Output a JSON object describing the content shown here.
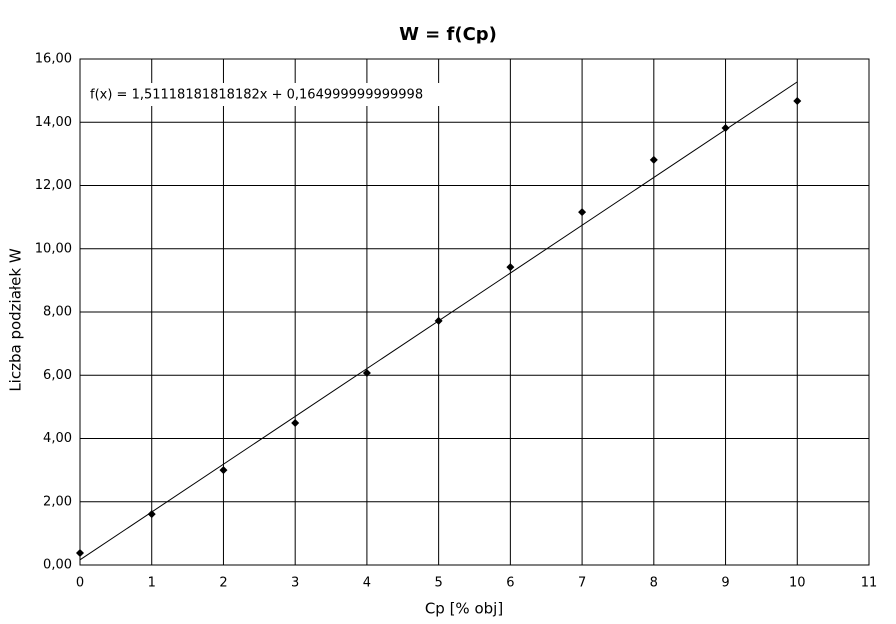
{
  "chart_data": {
    "type": "scatter",
    "title": "W = f(Cp)",
    "x_label": "Cp [% obj]",
    "y_label": "Liczba podziałek W",
    "x": [
      0,
      1,
      2,
      3,
      4,
      5,
      6,
      7,
      8,
      9,
      10
    ],
    "values": [
      0.38,
      1.61,
      3.0,
      4.49,
      6.07,
      7.72,
      9.42,
      11.16,
      12.81,
      13.82,
      14.67
    ],
    "color": "#000000",
    "trendline": {
      "slope": 1.51118181818182,
      "intercept": 0.164999999999998,
      "label": "f(x) = 1,51118181818182x + 0,164999999999998"
    },
    "xlim": [
      0,
      11
    ],
    "xticks": [
      0,
      1,
      2,
      3,
      4,
      5,
      6,
      7,
      8,
      9,
      10,
      11
    ],
    "ylim": [
      0,
      16
    ],
    "yticks": [
      {
        "value": 0,
        "label": "0,00"
      },
      {
        "value": 2,
        "label": "2,00"
      },
      {
        "value": 4,
        "label": "4,00"
      },
      {
        "value": 6,
        "label": "6,00"
      },
      {
        "value": 8,
        "label": "8,00"
      },
      {
        "value": 10,
        "label": "10,00"
      },
      {
        "value": 12,
        "label": "12,00"
      },
      {
        "value": 14,
        "label": "14,00"
      },
      {
        "value": 16,
        "label": "16,00"
      }
    ],
    "grid": true
  }
}
